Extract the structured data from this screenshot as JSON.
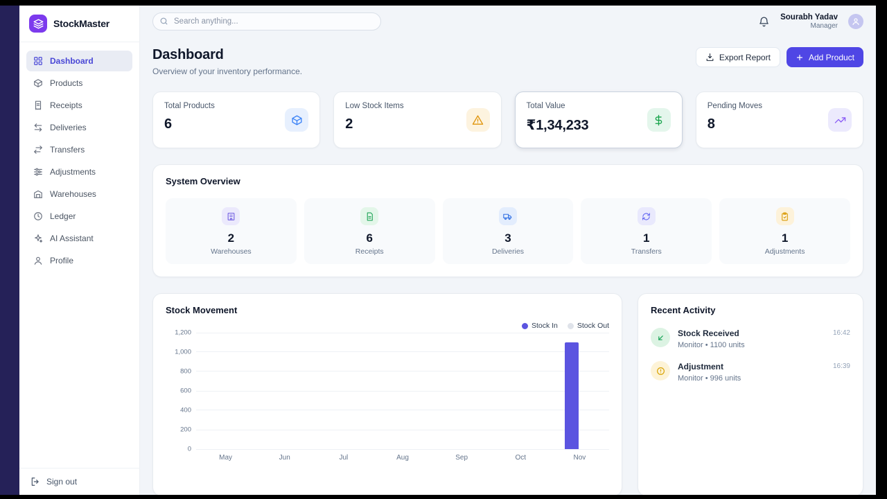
{
  "app": {
    "name": "StockMaster"
  },
  "colors": {
    "primary": "#4f46e5",
    "brand_logo": "#7c3aed",
    "sidebar_active": "#4846d6",
    "stock_in": "#5b54e0",
    "stock_out": "#dfe3ea"
  },
  "sidebar": {
    "items": [
      {
        "label": "Dashboard",
        "icon": "grid-icon",
        "active": true
      },
      {
        "label": "Products",
        "icon": "package-icon",
        "active": false
      },
      {
        "label": "Receipts",
        "icon": "receipt-icon",
        "active": false
      },
      {
        "label": "Deliveries",
        "icon": "arrow-left-right-icon",
        "active": false
      },
      {
        "label": "Transfers",
        "icon": "swap-arrows-icon",
        "active": false
      },
      {
        "label": "Adjustments",
        "icon": "sliders-icon",
        "active": false
      },
      {
        "label": "Warehouses",
        "icon": "warehouse-icon",
        "active": false
      },
      {
        "label": "Ledger",
        "icon": "history-clock-icon",
        "active": false
      },
      {
        "label": "AI Assistant",
        "icon": "sparkle-icon",
        "active": false
      },
      {
        "label": "Profile",
        "icon": "user-icon",
        "active": false
      }
    ],
    "sign_out": "Sign out"
  },
  "header": {
    "search_placeholder": "Search anything...",
    "user_name": "Sourabh Yadav",
    "user_role": "Manager"
  },
  "page": {
    "title": "Dashboard",
    "subtitle": "Overview of your inventory performance.",
    "export_label": "Export Report",
    "add_label": "Add Product"
  },
  "stats": [
    {
      "label": "Total Products",
      "value": "6",
      "icon": "cube-icon",
      "tone": "blue"
    },
    {
      "label": "Low Stock Items",
      "value": "2",
      "icon": "warning-icon",
      "tone": "amber"
    },
    {
      "label": "Total Value",
      "value": "₹1,34,233",
      "icon": "dollar-icon",
      "tone": "green"
    },
    {
      "label": "Pending Moves",
      "value": "8",
      "icon": "trend-up-icon",
      "tone": "purple"
    }
  ],
  "system_overview": {
    "title": "System Overview",
    "items": [
      {
        "value": "2",
        "label": "Warehouses",
        "icon": "building-icon",
        "tone": "indigo"
      },
      {
        "value": "6",
        "label": "Receipts",
        "icon": "document-icon",
        "tone": "green"
      },
      {
        "value": "3",
        "label": "Deliveries",
        "icon": "truck-icon",
        "tone": "blue"
      },
      {
        "value": "1",
        "label": "Transfers",
        "icon": "refresh-icon",
        "tone": "violet"
      },
      {
        "value": "1",
        "label": "Adjustments",
        "icon": "clipboard-icon",
        "tone": "amber"
      }
    ]
  },
  "chart_data": {
    "type": "bar",
    "title": "Stock Movement",
    "categories": [
      "May",
      "Jun",
      "Jul",
      "Aug",
      "Sep",
      "Oct",
      "Nov"
    ],
    "series": [
      {
        "name": "Stock In",
        "values": [
          0,
          0,
          0,
          0,
          0,
          0,
          1100
        ],
        "color": "#5b54e0"
      },
      {
        "name": "Stock Out",
        "values": [
          0,
          0,
          0,
          0,
          0,
          0,
          0
        ],
        "color": "#dfe3ea"
      }
    ],
    "ylim": [
      0,
      1200
    ],
    "yticks": [
      0,
      200,
      400,
      600,
      800,
      1000,
      1200
    ],
    "ytick_labels": [
      "0",
      "200",
      "400",
      "600",
      "800",
      "1,000",
      "1,200"
    ],
    "grid": true,
    "legend_position": "top-right"
  },
  "recent_activity": {
    "title": "Recent Activity",
    "items": [
      {
        "title": "Stock Received",
        "detail": "Monitor • 1100 units",
        "time": "16:42",
        "icon": "incoming-arrow-icon",
        "tone": "green"
      },
      {
        "title": "Adjustment",
        "detail": "Monitor • 996 units",
        "time": "16:39",
        "icon": "alert-circle-icon",
        "tone": "amber"
      }
    ]
  }
}
